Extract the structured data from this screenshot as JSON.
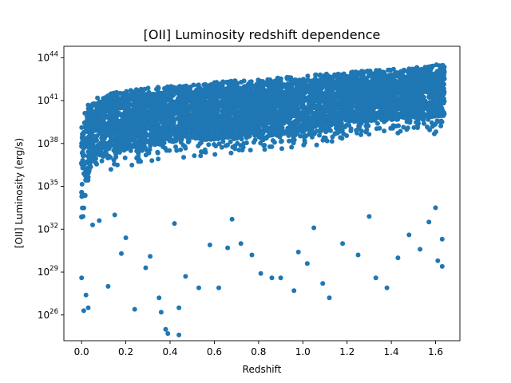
{
  "chart_data": {
    "type": "scatter",
    "title": "[OII] Luminosity redshift dependence",
    "xlabel": "Redshift",
    "ylabel": "[OII] Luminosity (erg/s)",
    "xlim": [
      -0.08,
      1.71
    ],
    "ylim_log10": [
      24.2,
      44.8
    ],
    "y_scale": "log",
    "grid": false,
    "legend": "none",
    "marker_color": "#1f77b4",
    "x_ticks": [
      "0.0",
      "0.2",
      "0.4",
      "0.6",
      "0.8",
      "1.0",
      "1.2",
      "1.4",
      "1.6"
    ],
    "x_tick_values": [
      0.0,
      0.2,
      0.4,
      0.6,
      0.8,
      1.0,
      1.2,
      1.4,
      1.6
    ],
    "y_ticks": [
      {
        "base": "10",
        "exp": "26",
        "log10": 26
      },
      {
        "base": "10",
        "exp": "29",
        "log10": 29
      },
      {
        "base": "10",
        "exp": "32",
        "log10": 32
      },
      {
        "base": "10",
        "exp": "35",
        "log10": 35
      },
      {
        "base": "10",
        "exp": "38",
        "log10": 38
      },
      {
        "base": "10",
        "exp": "41",
        "log10": 41
      },
      {
        "base": "10",
        "exp": "44",
        "log10": 44
      }
    ],
    "dense_band": {
      "description_units": "x = redshift, lower/upper = log10 luminosity",
      "x": [
        0.0,
        0.02,
        0.05,
        0.1,
        0.2,
        0.3,
        0.4,
        0.5,
        0.6,
        0.7,
        0.8,
        0.9,
        1.0,
        1.1,
        1.2,
        1.3,
        1.4,
        1.5,
        1.6,
        1.64
      ],
      "lower": [
        31.5,
        33.5,
        35.8,
        36.0,
        36.4,
        36.6,
        36.8,
        37.0,
        37.1,
        37.2,
        37.3,
        37.4,
        37.6,
        38.0,
        38.2,
        38.4,
        38.5,
        38.6,
        38.6,
        38.6
      ],
      "upper": [
        39.5,
        40.5,
        41.2,
        41.4,
        41.7,
        41.9,
        42.0,
        42.1,
        42.3,
        42.4,
        42.5,
        42.6,
        42.7,
        42.9,
        43.0,
        43.1,
        43.2,
        43.3,
        43.5,
        43.6
      ]
    },
    "outliers": [
      {
        "x": 0.0,
        "y": 28.6
      },
      {
        "x": 0.02,
        "y": 27.4
      },
      {
        "x": 0.01,
        "y": 26.3
      },
      {
        "x": 0.03,
        "y": 26.5
      },
      {
        "x": 0.05,
        "y": 32.3
      },
      {
        "x": 0.12,
        "y": 28.0
      },
      {
        "x": 0.18,
        "y": 30.3
      },
      {
        "x": 0.24,
        "y": 26.4
      },
      {
        "x": 0.29,
        "y": 29.3
      },
      {
        "x": 0.35,
        "y": 27.2
      },
      {
        "x": 0.36,
        "y": 26.2
      },
      {
        "x": 0.38,
        "y": 25.0
      },
      {
        "x": 0.39,
        "y": 24.7
      },
      {
        "x": 0.44,
        "y": 24.6
      },
      {
        "x": 0.44,
        "y": 26.5
      },
      {
        "x": 0.47,
        "y": 28.7
      },
      {
        "x": 0.53,
        "y": 27.9
      },
      {
        "x": 0.62,
        "y": 27.9
      },
      {
        "x": 0.66,
        "y": 30.7
      },
      {
        "x": 0.72,
        "y": 31.0
      },
      {
        "x": 0.81,
        "y": 28.9
      },
      {
        "x": 0.86,
        "y": 28.6
      },
      {
        "x": 0.9,
        "y": 28.6
      },
      {
        "x": 0.96,
        "y": 27.7
      },
      {
        "x": 1.02,
        "y": 29.6
      },
      {
        "x": 1.09,
        "y": 28.2
      },
      {
        "x": 1.12,
        "y": 27.2
      },
      {
        "x": 1.25,
        "y": 30.2
      },
      {
        "x": 1.33,
        "y": 28.6
      },
      {
        "x": 1.38,
        "y": 27.9
      },
      {
        "x": 1.43,
        "y": 30.0
      },
      {
        "x": 1.53,
        "y": 30.6
      },
      {
        "x": 1.61,
        "y": 29.8
      },
      {
        "x": 1.63,
        "y": 29.4
      },
      {
        "x": 0.2,
        "y": 31.4
      },
      {
        "x": 0.31,
        "y": 30.1
      },
      {
        "x": 0.58,
        "y": 30.9
      },
      {
        "x": 0.77,
        "y": 30.2
      },
      {
        "x": 0.98,
        "y": 30.4
      },
      {
        "x": 1.18,
        "y": 31.0
      },
      {
        "x": 1.48,
        "y": 31.6
      },
      {
        "x": 0.08,
        "y": 32.6
      },
      {
        "x": 0.15,
        "y": 33.0
      },
      {
        "x": 1.6,
        "y": 33.5
      },
      {
        "x": 1.63,
        "y": 31.3
      },
      {
        "x": 0.42,
        "y": 32.4
      },
      {
        "x": 0.68,
        "y": 32.7
      },
      {
        "x": 1.05,
        "y": 32.1
      },
      {
        "x": 1.3,
        "y": 32.9
      },
      {
        "x": 1.57,
        "y": 32.5
      }
    ]
  }
}
